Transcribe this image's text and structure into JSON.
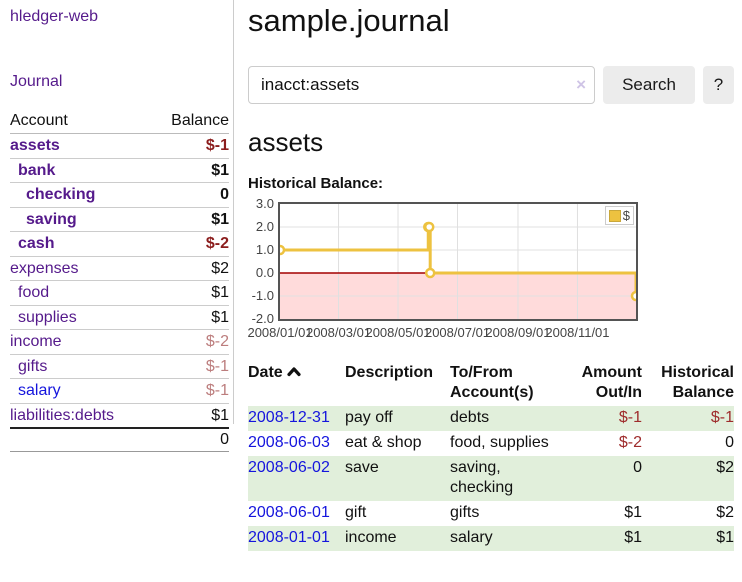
{
  "app": {
    "brand": "hledger-web"
  },
  "sidebar": {
    "journal_label": "Journal",
    "accounts_table": {
      "headers": [
        "Account",
        "Balance"
      ],
      "rows": [
        {
          "name": "assets",
          "balance": "$-1",
          "indent": 1,
          "bold": true
        },
        {
          "name": "bank",
          "balance": "$1",
          "indent": 2,
          "bold": true
        },
        {
          "name": "checking",
          "balance": "0",
          "indent": 3,
          "bold": true
        },
        {
          "name": "saving",
          "balance": "$1",
          "indent": 3,
          "bold": true
        },
        {
          "name": "cash",
          "balance": "$-2",
          "indent": 2,
          "bold": true
        },
        {
          "name": "expenses",
          "balance": "$2",
          "indent": 1,
          "bold": false
        },
        {
          "name": "food",
          "balance": "$1",
          "indent": 2,
          "bold": false
        },
        {
          "name": "supplies",
          "balance": "$1",
          "indent": 2,
          "bold": false
        },
        {
          "name": "income",
          "balance": "$-2",
          "indent": 1,
          "bold": false
        },
        {
          "name": "gifts",
          "balance": "$-1",
          "indent": 2,
          "bold": false
        },
        {
          "name": "salary",
          "balance": "$-1",
          "indent": 2,
          "bold": false,
          "unvisited": true
        },
        {
          "name": "liabilities:debts",
          "balance": "$1",
          "indent": 1,
          "bold": false
        }
      ],
      "total": "0"
    }
  },
  "main": {
    "title": "sample.journal",
    "search": {
      "value": "inacct:assets",
      "clear_label": "×",
      "button_label": "Search",
      "help_label": "?"
    },
    "account_heading": "assets",
    "chart_label": "Historical Balance:"
  },
  "chart_data": {
    "type": "line",
    "title": "Historical Balance",
    "step": true,
    "series": [
      {
        "name": "$",
        "color": "#edc240",
        "points": [
          [
            "2008-01-01",
            1
          ],
          [
            "2008-06-01",
            2
          ],
          [
            "2008-06-02",
            2
          ],
          [
            "2008-06-03",
            0
          ],
          [
            "2008-12-31",
            -1
          ]
        ]
      }
    ],
    "xlim": [
      "2008-01-01",
      "2008-12-31"
    ],
    "ylim": [
      -2,
      3
    ],
    "x_ticks": [
      "2008/01/01",
      "2008/03/01",
      "2008/05/01",
      "2008/07/01",
      "2008/09/01",
      "2008/11/01"
    ],
    "y_ticks": [
      3.0,
      2.0,
      1.0,
      0.0,
      -1.0,
      -2.0
    ],
    "grid": true,
    "negative_region_color": "#ffdbdb",
    "zero_line_color": "#a40000",
    "legend": {
      "label": "$",
      "position": "top-right"
    }
  },
  "register": {
    "sort": {
      "column": "Date",
      "direction": "asc"
    },
    "headers": [
      {
        "l1": "Date",
        "l2": "",
        "align": "left"
      },
      {
        "l1": "Description",
        "l2": "",
        "align": "left"
      },
      {
        "l1": "To/From",
        "l2": "Account(s)",
        "align": "left"
      },
      {
        "l1": "Amount",
        "l2": "Out/In",
        "align": "right"
      },
      {
        "l1": "Historical",
        "l2": "Balance",
        "align": "right"
      }
    ],
    "rows": [
      {
        "date": "2008-12-31",
        "description": "pay off",
        "accounts": "debts",
        "amount": "$-1",
        "balance": "$-1"
      },
      {
        "date": "2008-06-03",
        "description": "eat & shop",
        "accounts": "food, supplies",
        "amount": "$-2",
        "balance": "0"
      },
      {
        "date": "2008-06-02",
        "description": "save",
        "accounts": "saving, checking",
        "amount": "0",
        "balance": "$2"
      },
      {
        "date": "2008-06-01",
        "description": "gift",
        "accounts": "gifts",
        "amount": "$1",
        "balance": "$2"
      },
      {
        "date": "2008-01-01",
        "description": "income",
        "accounts": "salary",
        "amount": "$1",
        "balance": "$1"
      }
    ]
  }
}
